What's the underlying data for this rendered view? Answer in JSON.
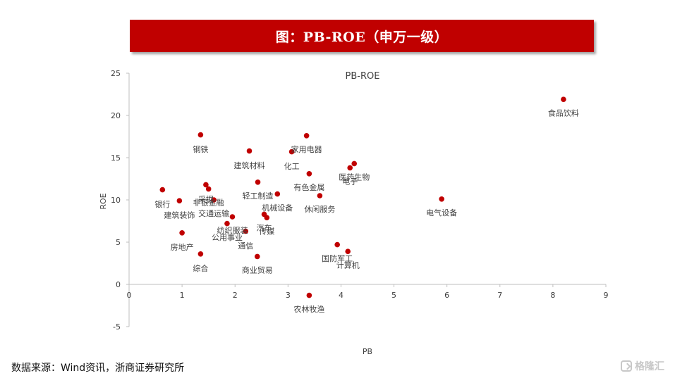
{
  "banner": {
    "title": "图：PB-ROE（申万一级）"
  },
  "source_note": "数据来源：Wind资讯，浙商证券研究所",
  "watermark": {
    "text": "格隆汇"
  },
  "colors": {
    "accent": "#c00000",
    "point": "#c00000",
    "axis": "#bfbfbf",
    "text": "#404040"
  },
  "chart_data": {
    "type": "scatter",
    "title": "PB-ROE",
    "xlabel": "PB",
    "ylabel": "ROE",
    "xlim": [
      0,
      9
    ],
    "ylim": [
      -5,
      25
    ],
    "xticks": [
      0,
      1,
      2,
      3,
      4,
      5,
      6,
      7,
      8,
      9
    ],
    "yticks": [
      -5,
      0,
      5,
      10,
      15,
      20,
      25
    ],
    "grid": false,
    "legend": "none",
    "points": [
      {
        "label": "食品饮料",
        "x": 8.2,
        "y": 21.9,
        "lx": 0,
        "ly": 1.6
      },
      {
        "label": "钢铁",
        "x": 1.35,
        "y": 17.7,
        "lx": 0,
        "ly": 1.7
      },
      {
        "label": "家用电器",
        "x": 3.35,
        "y": 17.6,
        "lx": 0,
        "ly": 1.6
      },
      {
        "label": "建筑材料",
        "x": 2.27,
        "y": 15.8,
        "lx": 0,
        "ly": 1.7
      },
      {
        "label": "化工",
        "x": 3.07,
        "y": 15.7,
        "lx": 0,
        "ly": 1.7
      },
      {
        "label": "医药生物",
        "x": 4.25,
        "y": 14.3,
        "lx": 0,
        "ly": 1.6
      },
      {
        "label": "电子",
        "x": 4.17,
        "y": 13.8,
        "lx": 0,
        "ly": 1.6
      },
      {
        "label": "有色金属",
        "x": 3.4,
        "y": 13.1,
        "lx": 0,
        "ly": 1.6
      },
      {
        "label": "采掘",
        "x": 1.45,
        "y": 11.8,
        "lx": 0,
        "ly": 1.7
      },
      {
        "label": "轻工制造",
        "x": 2.43,
        "y": 12.1,
        "lx": 0,
        "ly": 1.6
      },
      {
        "label": "非银金融",
        "x": 1.5,
        "y": 11.3,
        "lx": 0,
        "ly": 1.6
      },
      {
        "label": "银行",
        "x": 0.63,
        "y": 11.2,
        "lx": 0,
        "ly": 1.7
      },
      {
        "label": "机械设备",
        "x": 2.8,
        "y": 10.7,
        "lx": 0,
        "ly": 1.6
      },
      {
        "label": "休闲服务",
        "x": 3.6,
        "y": 10.5,
        "lx": 0,
        "ly": 1.6
      },
      {
        "label": "电气设备",
        "x": 5.9,
        "y": 10.1,
        "lx": 0,
        "ly": 1.6
      },
      {
        "label": "交通运输",
        "x": 1.6,
        "y": 10.0,
        "lx": 0,
        "ly": 1.6
      },
      {
        "label": "建筑装饰",
        "x": 0.95,
        "y": 9.9,
        "lx": 0,
        "ly": 1.7
      },
      {
        "label": "汽车",
        "x": 2.55,
        "y": 8.3,
        "lx": 0,
        "ly": 1.6
      },
      {
        "label": "传媒",
        "x": 2.6,
        "y": 7.9,
        "lx": 0,
        "ly": 1.6
      },
      {
        "label": "纺织服装",
        "x": 1.95,
        "y": 8.0,
        "lx": 0,
        "ly": 1.6
      },
      {
        "label": "公用事业",
        "x": 1.85,
        "y": 7.2,
        "lx": 0,
        "ly": 1.6
      },
      {
        "label": "通信",
        "x": 2.2,
        "y": 6.3,
        "lx": 0,
        "ly": 1.7
      },
      {
        "label": "房地产",
        "x": 1.0,
        "y": 6.1,
        "lx": 0,
        "ly": 1.7
      },
      {
        "label": "国防军工",
        "x": 3.93,
        "y": 4.7,
        "lx": 0,
        "ly": 1.6
      },
      {
        "label": "计算机",
        "x": 4.13,
        "y": 3.9,
        "lx": 0,
        "ly": 1.6
      },
      {
        "label": "综合",
        "x": 1.35,
        "y": 3.6,
        "lx": 0,
        "ly": 1.7
      },
      {
        "label": "商业贸易",
        "x": 2.42,
        "y": 3.3,
        "lx": 0,
        "ly": 1.6
      },
      {
        "label": "农林牧渔",
        "x": 3.4,
        "y": -1.3,
        "lx": 0,
        "ly": 1.6
      }
    ]
  }
}
